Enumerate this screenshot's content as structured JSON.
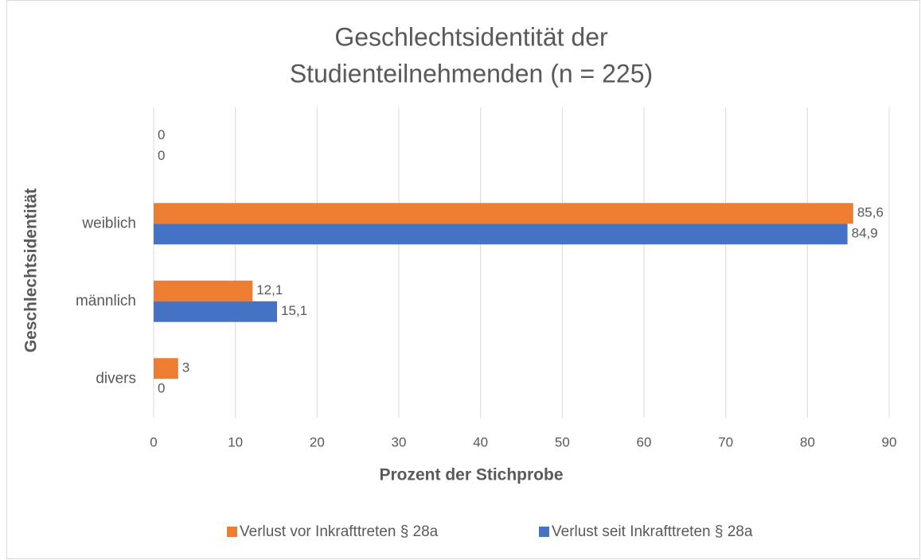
{
  "chart_data": {
    "type": "hbar",
    "title": [
      "Geschlechtsidentität der",
      "Studienteilnehmenden (n = 225)"
    ],
    "x_label": "Prozent der Stichprobe",
    "y_label": "Geschlechtsidentität",
    "categories": [
      "divers",
      "männlich",
      "weiblich",
      null
    ],
    "series": [
      {
        "name": "Verlust vor Inkrafttreten § 28a",
        "color": "#ed7d31",
        "values": [
          3,
          12.1,
          85.6,
          0
        ],
        "value_labels": [
          "3",
          "12,1",
          "85,6",
          "0"
        ]
      },
      {
        "name": "Verlust seit Inkrafttreten § 28a",
        "color": "#4472c4",
        "values": [
          0,
          15.1,
          84.9,
          0
        ],
        "value_labels": [
          "0",
          "15,1",
          "84,9",
          "0"
        ]
      }
    ],
    "xlim": [
      0,
      90
    ],
    "xticks": [
      0,
      10,
      20,
      30,
      40,
      50,
      60,
      70,
      80,
      90
    ],
    "grid": true,
    "legend": "bottom"
  }
}
